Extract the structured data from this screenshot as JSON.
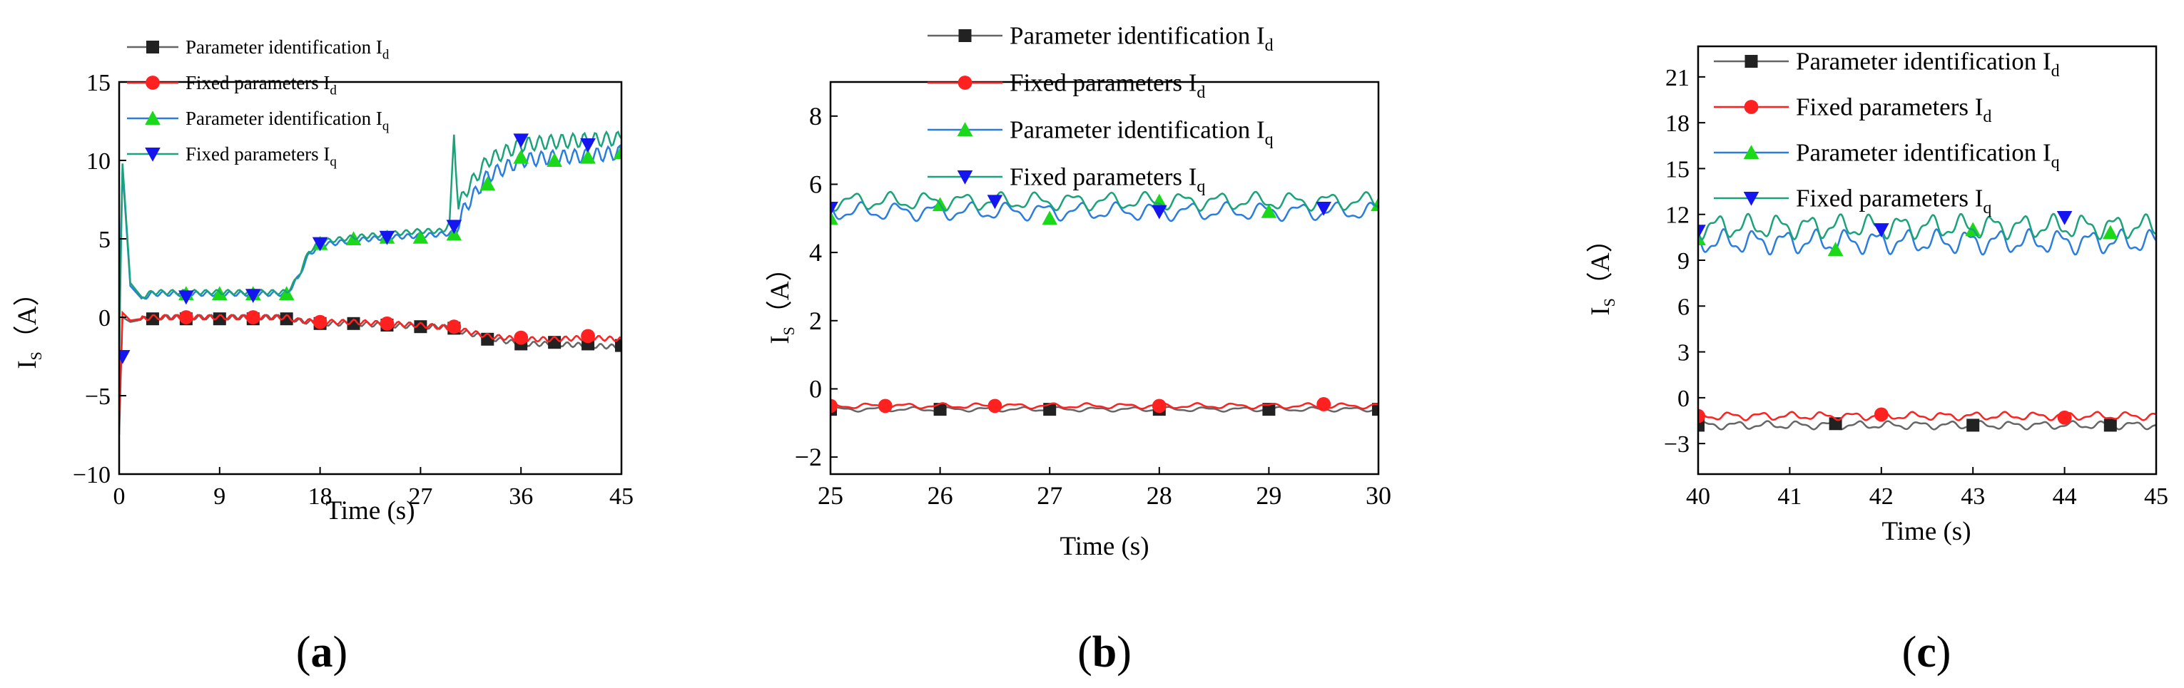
{
  "colors": {
    "black": "#222222",
    "red": "#ff2020",
    "green": "#1bd81b",
    "blue": "#1515f0",
    "blue_line": "#2a7de0",
    "green_line": "#1aa37a",
    "gray_line": "#666666"
  },
  "chart_data": [
    {
      "panel": "a",
      "label_open": "(",
      "label_letter": "a",
      "label_close": ")",
      "type": "line",
      "xlabel": "Time (s)",
      "ylabel_main": "I",
      "ylabel_sub": "S",
      "ylabel_unit": "（A）",
      "xlim": [
        0,
        45
      ],
      "ylim": [
        -10,
        15
      ],
      "xticks": [
        0,
        9,
        18,
        27,
        36,
        45
      ],
      "yticks": [
        -10,
        -5,
        0,
        5,
        10,
        15
      ],
      "legend": [
        {
          "text": "Parameter identification I",
          "sub": "d"
        },
        {
          "text": "Fixed parameters I",
          "sub": "d"
        },
        {
          "text": "Parameter identification I",
          "sub": "q"
        },
        {
          "text": "Fixed parameters I",
          "sub": "q"
        }
      ],
      "series": [
        {
          "name": "Parameter identification Id",
          "line": [
            [
              0,
              -7.5
            ],
            [
              0.3,
              0
            ],
            [
              1,
              -0.3
            ],
            [
              3,
              0
            ],
            [
              6,
              0
            ],
            [
              9,
              0
            ],
            [
              12,
              0
            ],
            [
              15,
              0
            ],
            [
              16,
              -0.2
            ],
            [
              18,
              -0.4
            ],
            [
              21,
              -0.4
            ],
            [
              24,
              -0.5
            ],
            [
              27,
              -0.6
            ],
            [
              29,
              -0.6
            ],
            [
              30,
              -0.8
            ],
            [
              33,
              -1.3
            ],
            [
              36,
              -1.7
            ],
            [
              39,
              -1.7
            ],
            [
              42,
              -1.8
            ],
            [
              45,
              -1.9
            ]
          ],
          "markers": [
            [
              3,
              -0.1
            ],
            [
              6,
              -0.1
            ],
            [
              9,
              -0.1
            ],
            [
              12,
              -0.1
            ],
            [
              15,
              -0.1
            ],
            [
              18,
              -0.4
            ],
            [
              21,
              -0.4
            ],
            [
              24,
              -0.5
            ],
            [
              27,
              -0.6
            ],
            [
              30,
              -0.7
            ],
            [
              33,
              -1.4
            ],
            [
              36,
              -1.7
            ],
            [
              39,
              -1.6
            ],
            [
              42,
              -1.7
            ],
            [
              45,
              -1.8
            ]
          ]
        },
        {
          "name": "Fixed parameters Id",
          "line": [
            [
              0,
              -6.5
            ],
            [
              0.3,
              0.3
            ],
            [
              1,
              -0.2
            ],
            [
              3,
              0
            ],
            [
              6,
              0
            ],
            [
              9,
              0
            ],
            [
              12,
              0
            ],
            [
              15,
              0
            ],
            [
              16,
              -0.2
            ],
            [
              18,
              -0.3
            ],
            [
              21,
              -0.3
            ],
            [
              24,
              -0.4
            ],
            [
              27,
              -0.5
            ],
            [
              30,
              -0.7
            ],
            [
              33,
              -1.2
            ],
            [
              36,
              -1.4
            ],
            [
              39,
              -1.4
            ],
            [
              42,
              -1.3
            ],
            [
              45,
              -1.4
            ]
          ],
          "markers": [
            [
              6,
              0
            ],
            [
              12,
              0
            ],
            [
              18,
              -0.3
            ],
            [
              24,
              -0.4
            ],
            [
              30,
              -0.6
            ],
            [
              36,
              -1.3
            ],
            [
              42,
              -1.2
            ]
          ]
        },
        {
          "name": "Parameter identification Iq",
          "line": [
            [
              0,
              0
            ],
            [
              0.3,
              9.5
            ],
            [
              1,
              2
            ],
            [
              2,
              1.2
            ],
            [
              3,
              1.5
            ],
            [
              6,
              1.5
            ],
            [
              9,
              1.5
            ],
            [
              12,
              1.5
            ],
            [
              15,
              1.5
            ],
            [
              16,
              2.5
            ],
            [
              17,
              4
            ],
            [
              18,
              4.6
            ],
            [
              21,
              4.9
            ],
            [
              24,
              5.1
            ],
            [
              27,
              5.2
            ],
            [
              29,
              5.3
            ],
            [
              30,
              5.4
            ],
            [
              31,
              7
            ],
            [
              33,
              9
            ],
            [
              36,
              10
            ],
            [
              39,
              10.2
            ],
            [
              42,
              10.3
            ],
            [
              45,
              10.5
            ]
          ],
          "markers": [
            [
              6,
              1.5
            ],
            [
              9,
              1.5
            ],
            [
              12,
              1.5
            ],
            [
              15,
              1.5
            ],
            [
              18,
              4.7
            ],
            [
              21,
              5.0
            ],
            [
              24,
              5.1
            ],
            [
              27,
              5.1
            ],
            [
              30,
              5.3
            ],
            [
              33,
              8.5
            ],
            [
              36,
              10.2
            ],
            [
              39,
              10.0
            ],
            [
              42,
              10.2
            ],
            [
              45,
              10.5
            ]
          ]
        },
        {
          "name": "Fixed parameters Iq",
          "line": [
            [
              0,
              -2.5
            ],
            [
              0.3,
              9.8
            ],
            [
              1,
              2.2
            ],
            [
              2,
              1.3
            ],
            [
              3,
              1.6
            ],
            [
              6,
              1.6
            ],
            [
              9,
              1.6
            ],
            [
              12,
              1.6
            ],
            [
              15,
              1.6
            ],
            [
              16,
              2.5
            ],
            [
              17,
              4.2
            ],
            [
              18,
              4.8
            ],
            [
              21,
              5.1
            ],
            [
              24,
              5.3
            ],
            [
              27,
              5.5
            ],
            [
              29,
              5.5
            ],
            [
              29.6,
              6
            ],
            [
              30,
              11.7
            ],
            [
              30.4,
              7
            ],
            [
              31,
              8
            ],
            [
              33,
              10
            ],
            [
              36,
              11
            ],
            [
              39,
              11.2
            ],
            [
              42,
              11.3
            ],
            [
              45,
              11.4
            ]
          ],
          "markers": [
            [
              0.3,
              -2.5
            ],
            [
              6,
              1.3
            ],
            [
              12,
              1.4
            ],
            [
              18,
              4.7
            ],
            [
              24,
              5.1
            ],
            [
              30,
              5.8
            ],
            [
              36,
              11.3
            ],
            [
              42,
              11.0
            ]
          ]
        }
      ]
    },
    {
      "panel": "b",
      "label_open": "(",
      "label_letter": "b",
      "label_close": ")",
      "type": "line",
      "xlabel": "Time (s)",
      "ylabel_main": "I",
      "ylabel_sub": "S",
      "ylabel_unit": "（A）",
      "xlim": [
        25,
        30
      ],
      "ylim": [
        -2.5,
        9
      ],
      "xticks": [
        25,
        26,
        27,
        28,
        29,
        30
      ],
      "yticks": [
        -2,
        0,
        2,
        4,
        6,
        8
      ],
      "legend": [
        {
          "text": "Parameter identification I",
          "sub": "d"
        },
        {
          "text": "Fixed parameters I",
          "sub": "d"
        },
        {
          "text": "Parameter identification I",
          "sub": "q"
        },
        {
          "text": "Fixed parameters I",
          "sub": "q"
        }
      ],
      "series": [
        {
          "name": "Parameter identification Id",
          "base": -0.6,
          "amp": 0.05,
          "freq": 3,
          "markers": [
            [
              25,
              -0.6
            ],
            [
              26,
              -0.6
            ],
            [
              27,
              -0.6
            ],
            [
              28,
              -0.6
            ],
            [
              29,
              -0.6
            ],
            [
              30,
              -0.6
            ]
          ]
        },
        {
          "name": "Fixed parameters Id",
          "base": -0.5,
          "amp": 0.06,
          "freq": 3,
          "markers": [
            [
              25,
              -0.5
            ],
            [
              25.5,
              -0.5
            ],
            [
              26.5,
              -0.5
            ],
            [
              28,
              -0.5
            ],
            [
              29.5,
              -0.45
            ]
          ]
        },
        {
          "name": "Parameter identification Iq",
          "base": 5.2,
          "amp": 0.2,
          "freq": 3,
          "markers": [
            [
              25,
              5.0
            ],
            [
              26,
              5.4
            ],
            [
              27,
              5.0
            ],
            [
              28,
              5.5
            ],
            [
              29,
              5.2
            ],
            [
              30,
              5.4
            ]
          ]
        },
        {
          "name": "Fixed parameters Iq",
          "base": 5.5,
          "amp": 0.2,
          "freq": 3,
          "markers": [
            [
              25,
              5.3
            ],
            [
              26.5,
              5.5
            ],
            [
              28,
              5.2
            ],
            [
              29.5,
              5.3
            ]
          ]
        }
      ]
    },
    {
      "panel": "c",
      "label_open": "(",
      "label_letter": "c",
      "label_close": ")",
      "type": "line",
      "xlabel": "Time (s)",
      "ylabel_main": "I",
      "ylabel_sub": "S",
      "ylabel_unit": "（A）",
      "xlim": [
        40,
        45
      ],
      "ylim": [
        -5,
        23
      ],
      "xticks": [
        40,
        41,
        42,
        43,
        44,
        45
      ],
      "yticks": [
        -3,
        0,
        3,
        6,
        9,
        12,
        15,
        18,
        21
      ],
      "legend": [
        {
          "text": "Parameter identification I",
          "sub": "d"
        },
        {
          "text": "Fixed parameters I",
          "sub": "d"
        },
        {
          "text": "Parameter identification I",
          "sub": "q"
        },
        {
          "text": "Fixed parameters I",
          "sub": "q"
        }
      ],
      "series": [
        {
          "name": "Parameter identification Id",
          "base": -1.8,
          "amp": 0.2,
          "freq": 3,
          "markers": [
            [
              40,
              -1.8
            ],
            [
              41.5,
              -1.7
            ],
            [
              43,
              -1.8
            ],
            [
              44.5,
              -1.8
            ]
          ]
        },
        {
          "name": "Fixed parameters Id",
          "base": -1.2,
          "amp": 0.2,
          "freq": 3,
          "markers": [
            [
              40,
              -1.2
            ],
            [
              42,
              -1.1
            ],
            [
              44,
              -1.3
            ]
          ]
        },
        {
          "name": "Parameter identification Iq",
          "base": 10.2,
          "amp": 0.6,
          "freq": 3,
          "markers": [
            [
              40,
              10.4
            ],
            [
              41.5,
              9.7
            ],
            [
              43,
              11.0
            ],
            [
              44.5,
              10.8
            ]
          ]
        },
        {
          "name": "Fixed parameters Iq",
          "base": 11.2,
          "amp": 0.6,
          "freq": 3,
          "markers": [
            [
              40,
              10.9
            ],
            [
              42,
              11.0
            ],
            [
              44,
              11.8
            ]
          ]
        }
      ]
    }
  ]
}
